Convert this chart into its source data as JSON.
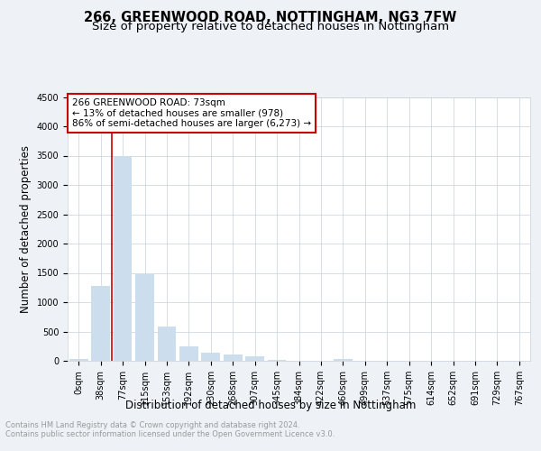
{
  "title": "266, GREENWOOD ROAD, NOTTINGHAM, NG3 7FW",
  "subtitle": "Size of property relative to detached houses in Nottingham",
  "xlabel": "Distribution of detached houses by size in Nottingham",
  "ylabel": "Number of detached properties",
  "categories": [
    "0sqm",
    "38sqm",
    "77sqm",
    "115sqm",
    "153sqm",
    "192sqm",
    "230sqm",
    "268sqm",
    "307sqm",
    "345sqm",
    "384sqm",
    "422sqm",
    "460sqm",
    "499sqm",
    "537sqm",
    "575sqm",
    "614sqm",
    "652sqm",
    "691sqm",
    "729sqm",
    "767sqm"
  ],
  "values": [
    30,
    1280,
    3500,
    1480,
    590,
    250,
    135,
    110,
    70,
    10,
    2,
    0,
    30,
    0,
    0,
    0,
    0,
    0,
    0,
    0,
    0
  ],
  "bar_color": "#ccdded",
  "annotation_box_text": "266 GREENWOOD ROAD: 73sqm\n← 13% of detached houses are smaller (978)\n86% of semi-detached houses are larger (6,273) →",
  "annotation_box_color": "#cc0000",
  "annotation_box_fill": "#ffffff",
  "redline_bar_index": 2,
  "ylim": [
    0,
    4500
  ],
  "yticks": [
    0,
    500,
    1000,
    1500,
    2000,
    2500,
    3000,
    3500,
    4000,
    4500
  ],
  "footer_line1": "Contains HM Land Registry data © Crown copyright and database right 2024.",
  "footer_line2": "Contains public sector information licensed under the Open Government Licence v3.0.",
  "bg_color": "#eef2f7",
  "plot_bg_color": "#ffffff",
  "grid_color": "#c8d0da",
  "title_fontsize": 10.5,
  "subtitle_fontsize": 9.5,
  "tick_fontsize": 7,
  "ylabel_fontsize": 8.5,
  "xlabel_fontsize": 8.5,
  "footer_fontsize": 6,
  "footer_color": "#999999"
}
